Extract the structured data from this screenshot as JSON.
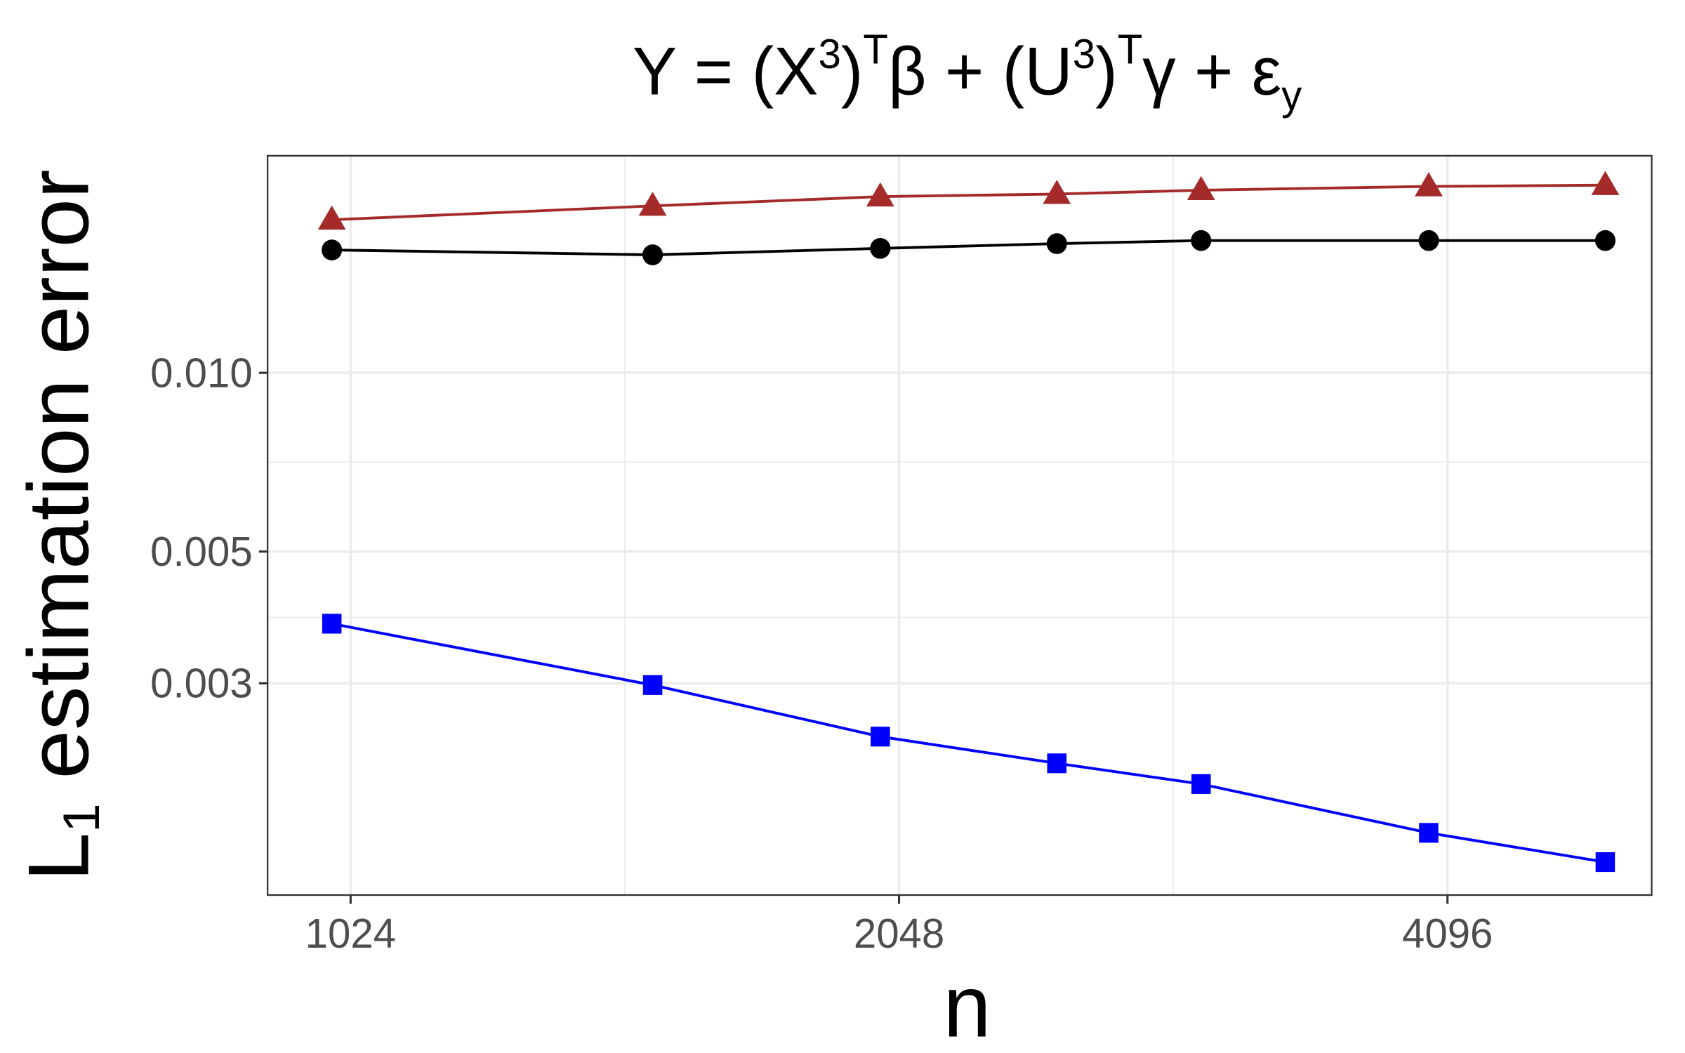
{
  "chart_data": {
    "type": "line",
    "title": [
      "Y = (X",
      "3",
      ")",
      "T",
      "β + (U",
      "3",
      ")",
      "T",
      "γ + ε",
      "y"
    ],
    "x_label": "n",
    "y_label": [
      "L",
      "1",
      " estimation error"
    ],
    "x": [
      1000,
      1500,
      2000,
      2500,
      3000,
      4000,
      5000
    ],
    "series": [
      {
        "color": "#a52a2a",
        "marker": "triangle",
        "values": [
          0.0181,
          0.0191,
          0.0198,
          0.02,
          0.0203,
          0.0206,
          0.0207
        ]
      },
      {
        "color": "#000000",
        "marker": "circle",
        "values": [
          0.0161,
          0.0158,
          0.0162,
          0.0165,
          0.0167,
          0.0167,
          0.0167
        ]
      },
      {
        "color": "#0000ff",
        "marker": "square",
        "values": [
          0.00378,
          0.00298,
          0.00244,
          0.0022,
          0.00203,
          0.00168,
          0.0015
        ]
      }
    ],
    "x_log_base": 2,
    "y_log": true,
    "xlim": [
      922,
      5302
    ],
    "ylim": [
      0.00132,
      0.0232
    ],
    "xticks": [
      1024,
      2048,
      4096
    ],
    "yticks": [
      {
        "value": 0.003,
        "label": "0.003"
      },
      {
        "value": 0.005,
        "label": "0.005"
      },
      {
        "value": 0.01,
        "label": "0.010"
      }
    ],
    "grid": true
  }
}
